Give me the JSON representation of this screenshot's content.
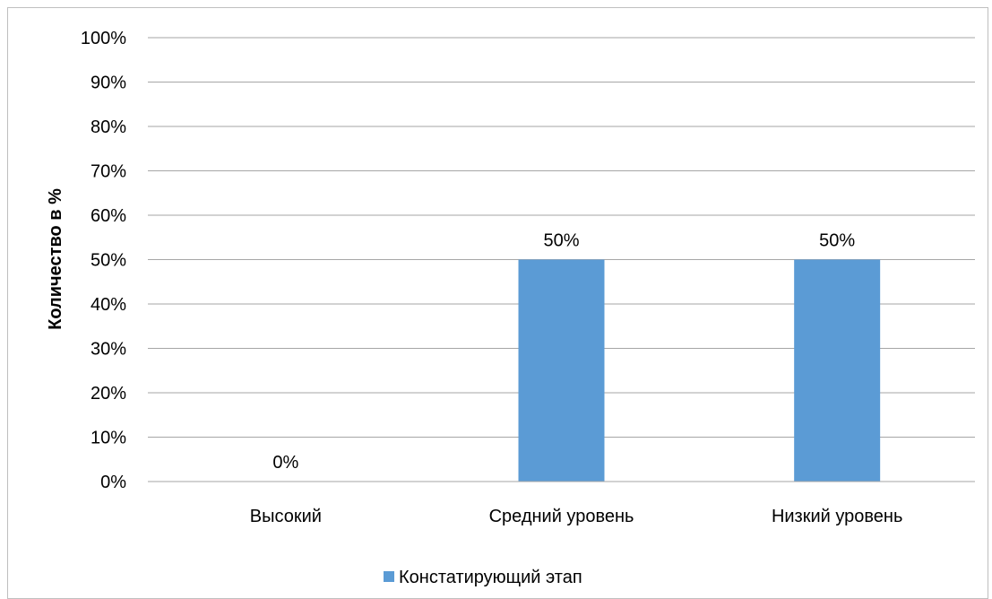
{
  "chart_data": {
    "type": "bar",
    "categories": [
      "Высокий",
      "Средний уровень",
      "Низкий уровень"
    ],
    "series": [
      {
        "name": "Констатирующий этап",
        "values": [
          0,
          50,
          50
        ],
        "labels": [
          "0%",
          "50%",
          "50%"
        ],
        "color": "#5b9bd5"
      }
    ],
    "ylabel": "Количество в %",
    "xlabel": "",
    "ylim": [
      0,
      100
    ],
    "yticks": [
      "0%",
      "10%",
      "20%",
      "30%",
      "40%",
      "50%",
      "60%",
      "70%",
      "80%",
      "90%",
      "100%"
    ],
    "grid": true,
    "legend_position": "bottom"
  }
}
